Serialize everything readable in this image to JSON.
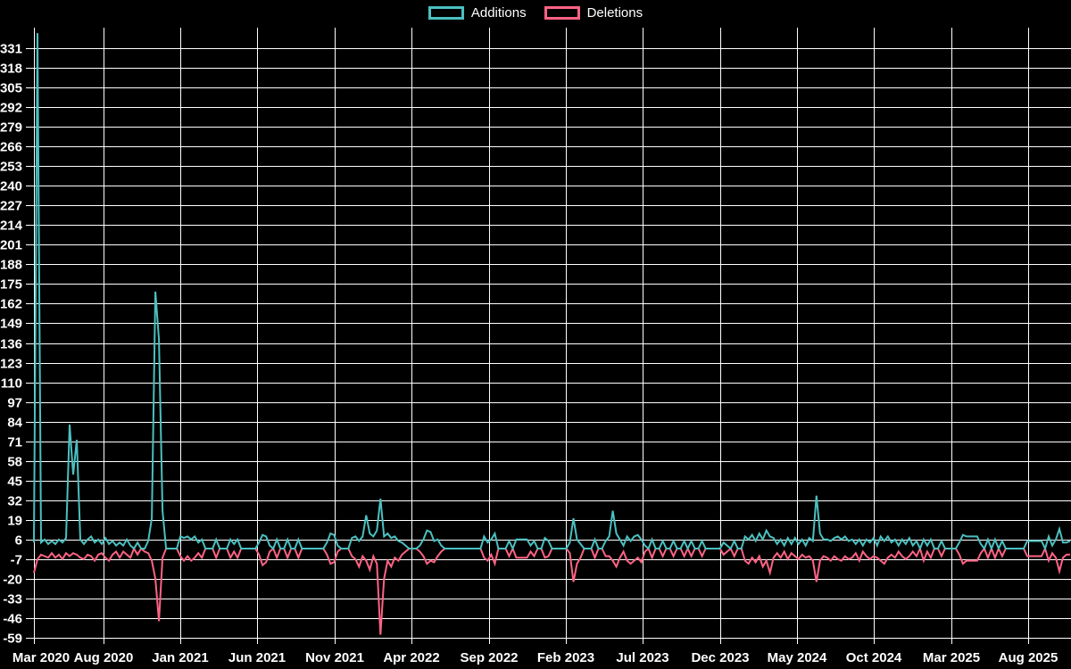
{
  "chart_data": {
    "type": "line",
    "title": "",
    "legend_position": "top",
    "background_color": "#000000",
    "grid_color": "#ffffff",
    "axis_text_color": "#ffffff",
    "grid": true,
    "x_unit": "week",
    "x_range_label": "Mar 2020 - Oct 2025",
    "ylim": [
      -59,
      344
    ],
    "y_ticks": [
      331,
      318,
      305,
      292,
      279,
      266,
      253,
      240,
      227,
      214,
      201,
      188,
      175,
      162,
      149,
      136,
      123,
      110,
      97,
      84,
      71,
      58,
      45,
      32,
      19,
      6,
      -7,
      -20,
      -33,
      -46,
      -59
    ],
    "x_tick_labels": [
      "Mar 2020",
      "Aug 2020",
      "Jan 2021",
      "Jun 2021",
      "Nov 2021",
      "Apr 2022",
      "Sep 2022",
      "Feb 2023",
      "Jul 2023",
      "Dec 2023",
      "May 2024",
      "Oct 2024",
      "Mar 2025",
      "Aug 2025"
    ],
    "legend": [
      {
        "label": "Additions",
        "color": "#4bc0c0"
      },
      {
        "label": "Deletions",
        "color": "#ff6384"
      }
    ],
    "series": [
      {
        "name": "Additions",
        "color": "#4bc0c0",
        "values": [
          4,
          341,
          4,
          6,
          3,
          5,
          3,
          6,
          4,
          7,
          82,
          49,
          72,
          6,
          3,
          6,
          8,
          4,
          6,
          3,
          7,
          3,
          5,
          2,
          4,
          2,
          6,
          2,
          0,
          4,
          0,
          0,
          5,
          20,
          170,
          138,
          25,
          0,
          0,
          0,
          0,
          8,
          7,
          8,
          6,
          8,
          4,
          6,
          0,
          0,
          0,
          6,
          0,
          0,
          0,
          6,
          3,
          6,
          0,
          0,
          0,
          0,
          0,
          4,
          9,
          8,
          2,
          0,
          6,
          0,
          0,
          6,
          0,
          0,
          6,
          0,
          0,
          0,
          0,
          0,
          0,
          0,
          4,
          10,
          9,
          2,
          0,
          0,
          0,
          7,
          8,
          5,
          8,
          22,
          10,
          8,
          12,
          33,
          8,
          10,
          7,
          8,
          5,
          4,
          2,
          0,
          0,
          0,
          2,
          6,
          12,
          11,
          5,
          6,
          2,
          0,
          0,
          0,
          0,
          0,
          0,
          0,
          0,
          0,
          0,
          0,
          8,
          4,
          6,
          10,
          0,
          0,
          0,
          5,
          0,
          6,
          6,
          6,
          6,
          2,
          5,
          0,
          0,
          7,
          5,
          0,
          0,
          0,
          0,
          0,
          4,
          20,
          6,
          3,
          0,
          0,
          0,
          6,
          0,
          0,
          5,
          8,
          25,
          10,
          6,
          2,
          8,
          5,
          8,
          9,
          6,
          2,
          0,
          6,
          0,
          0,
          5,
          0,
          0,
          5,
          0,
          0,
          5,
          0,
          5,
          0,
          0,
          5,
          0,
          0,
          0,
          0,
          0,
          4,
          2,
          0,
          5,
          0,
          0,
          8,
          6,
          9,
          5,
          10,
          6,
          12,
          8,
          7,
          3,
          6,
          2,
          7,
          3,
          7,
          3,
          6,
          2,
          7,
          5,
          35,
          10,
          6,
          6,
          5,
          7,
          8,
          6,
          8,
          5,
          6,
          3,
          6,
          2,
          6,
          4,
          7,
          2,
          8,
          5,
          8,
          4,
          6,
          2,
          6,
          3,
          7,
          2,
          5,
          0,
          6,
          2,
          6,
          0,
          0,
          5,
          0,
          0,
          0,
          0,
          4,
          9,
          8,
          8,
          8,
          8,
          3,
          0,
          6,
          0,
          6,
          0,
          5,
          0,
          0,
          0,
          0,
          0,
          0,
          5,
          5,
          5,
          5,
          5,
          0,
          8,
          2,
          6,
          13,
          4,
          4,
          5
        ]
      },
      {
        "name": "Deletions",
        "color": "#ff6384",
        "values": [
          -16,
          -7,
          -4,
          -5,
          -6,
          -3,
          -6,
          -4,
          -7,
          -3,
          -5,
          -3,
          -4,
          -6,
          -7,
          -4,
          -5,
          -8,
          -4,
          -3,
          -6,
          -8,
          -4,
          -2,
          -6,
          -2,
          -4,
          -6,
          0,
          -4,
          0,
          -2,
          -3,
          -8,
          -20,
          -48,
          -6,
          0,
          0,
          0,
          0,
          -5,
          -8,
          -5,
          -8,
          -6,
          -3,
          -6,
          0,
          0,
          0,
          -6,
          0,
          0,
          0,
          -6,
          -2,
          -6,
          0,
          0,
          0,
          0,
          0,
          -4,
          -11,
          -9,
          -2,
          0,
          -6,
          0,
          0,
          -6,
          0,
          0,
          -6,
          0,
          0,
          0,
          0,
          0,
          0,
          0,
          -4,
          -10,
          -9,
          -2,
          0,
          0,
          0,
          -5,
          -7,
          -12,
          -5,
          -8,
          -14,
          -5,
          -10,
          -57,
          -20,
          -8,
          -12,
          -6,
          -8,
          -4,
          -2,
          0,
          0,
          0,
          -2,
          -5,
          -10,
          -8,
          -9,
          -5,
          -2,
          0,
          0,
          0,
          0,
          0,
          0,
          0,
          0,
          0,
          0,
          0,
          -6,
          -8,
          -4,
          -10,
          0,
          0,
          0,
          -5,
          0,
          -6,
          -6,
          -6,
          -6,
          -2,
          -5,
          0,
          0,
          -6,
          -5,
          0,
          0,
          0,
          0,
          0,
          -3,
          -22,
          -10,
          -6,
          0,
          0,
          0,
          -6,
          0,
          0,
          -5,
          -5,
          -8,
          -12,
          -6,
          -2,
          -8,
          -10,
          -8,
          -6,
          -9,
          -2,
          0,
          -6,
          0,
          0,
          -5,
          0,
          0,
          -5,
          0,
          0,
          -5,
          0,
          -5,
          0,
          0,
          -5,
          0,
          0,
          0,
          0,
          0,
          -4,
          -2,
          0,
          -5,
          0,
          0,
          -8,
          -10,
          -6,
          -9,
          -5,
          -12,
          -8,
          -16,
          -6,
          -3,
          -6,
          -2,
          -7,
          -3,
          -5,
          -7,
          -4,
          -6,
          -5,
          -8,
          -22,
          -8,
          -5,
          -6,
          -8,
          -5,
          -7,
          -8,
          -5,
          -7,
          -6,
          -3,
          -8,
          -2,
          -5,
          -7,
          -5,
          -6,
          -8,
          -10,
          -6,
          -4,
          -6,
          -2,
          -5,
          -7,
          -5,
          -2,
          -5,
          0,
          -8,
          -2,
          -6,
          0,
          0,
          -5,
          0,
          0,
          0,
          0,
          -4,
          -10,
          -8,
          -8,
          -8,
          -8,
          -3,
          0,
          -6,
          0,
          -6,
          0,
          -5,
          0,
          0,
          0,
          0,
          0,
          0,
          -5,
          -5,
          -5,
          -5,
          -5,
          0,
          -8,
          -3,
          -6,
          -15,
          -6,
          -4,
          -4
        ]
      }
    ]
  }
}
